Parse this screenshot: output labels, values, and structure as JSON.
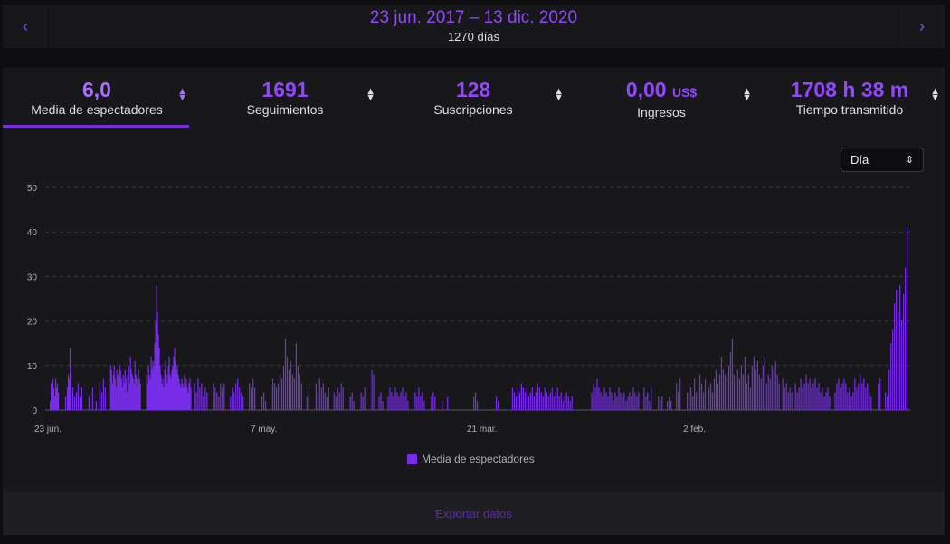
{
  "date_range": {
    "title": "23 jun. 2017 – 13 dic. 2020",
    "subtitle": "1270 días",
    "prev_icon": "‹",
    "next_icon": "›"
  },
  "stats": [
    {
      "value": "6,0",
      "unit": "",
      "label": "Media de espectadores",
      "active": true
    },
    {
      "value": "1691",
      "unit": "",
      "label": "Seguimientos",
      "active": false
    },
    {
      "value": "128",
      "unit": "",
      "label": "Suscripciones",
      "active": false
    },
    {
      "value": "0,00",
      "unit": "US$",
      "label": "Ingresos",
      "active": false
    },
    {
      "value": "1708 h 38 m",
      "unit": "",
      "label": "Tiempo transmitido",
      "active": false
    }
  ],
  "sort_icon": "sort-arrows-icon",
  "granularity": {
    "selected": "Día"
  },
  "legend": {
    "label": "Media de espectadores"
  },
  "export": {
    "label": "Exportar datos"
  },
  "colors": {
    "accent": "#9147ff",
    "bar": "#772ce8",
    "background": "#18181b"
  },
  "chart_data": {
    "type": "bar",
    "series": [
      {
        "name": "Media de espectadores"
      }
    ],
    "ylim": [
      0,
      50
    ],
    "yticks": [
      0,
      10,
      20,
      30,
      40,
      50
    ],
    "xticks": [
      "23 jun.",
      "7 may.",
      "21 mar.",
      "2 feb."
    ],
    "grid": true,
    "legend_position": "bottom",
    "total_days": 1270,
    "points": [
      [
        5,
        2
      ],
      [
        6,
        6
      ],
      [
        7,
        4
      ],
      [
        8,
        7
      ],
      [
        9,
        5
      ],
      [
        10,
        3
      ],
      [
        11,
        7
      ],
      [
        12,
        5
      ],
      [
        13,
        6
      ],
      [
        14,
        4
      ],
      [
        22,
        3
      ],
      [
        24,
        5
      ],
      [
        25,
        8
      ],
      [
        26,
        7
      ],
      [
        27,
        14
      ],
      [
        28,
        10
      ],
      [
        30,
        5
      ],
      [
        32,
        3
      ],
      [
        34,
        4
      ],
      [
        36,
        6
      ],
      [
        38,
        3
      ],
      [
        40,
        5
      ],
      [
        48,
        3
      ],
      [
        52,
        5
      ],
      [
        56,
        2
      ],
      [
        60,
        6
      ],
      [
        62,
        4
      ],
      [
        64,
        7
      ],
      [
        66,
        5
      ],
      [
        72,
        10
      ],
      [
        73,
        9
      ],
      [
        74,
        6
      ],
      [
        75,
        8
      ],
      [
        76,
        10
      ],
      [
        77,
        7
      ],
      [
        78,
        5
      ],
      [
        79,
        9
      ],
      [
        80,
        8
      ],
      [
        81,
        6
      ],
      [
        82,
        10
      ],
      [
        83,
        9
      ],
      [
        84,
        7
      ],
      [
        85,
        5
      ],
      [
        86,
        8
      ],
      [
        87,
        6
      ],
      [
        88,
        9
      ],
      [
        89,
        7
      ],
      [
        90,
        4
      ],
      [
        91,
        8
      ],
      [
        92,
        10
      ],
      [
        93,
        6
      ],
      [
        94,
        12
      ],
      [
        95,
        9
      ],
      [
        96,
        8
      ],
      [
        97,
        7
      ],
      [
        98,
        6
      ],
      [
        99,
        11
      ],
      [
        100,
        8
      ],
      [
        101,
        7
      ],
      [
        102,
        5
      ],
      [
        103,
        9
      ],
      [
        104,
        7
      ],
      [
        105,
        6
      ],
      [
        112,
        8
      ],
      [
        113,
        6
      ],
      [
        114,
        10
      ],
      [
        115,
        8
      ],
      [
        116,
        7
      ],
      [
        117,
        12
      ],
      [
        118,
        9
      ],
      [
        119,
        11
      ],
      [
        120,
        10
      ],
      [
        121,
        15
      ],
      [
        122,
        20
      ],
      [
        123,
        28
      ],
      [
        124,
        22
      ],
      [
        125,
        17
      ],
      [
        126,
        14
      ],
      [
        127,
        10
      ],
      [
        128,
        8
      ],
      [
        129,
        6
      ],
      [
        130,
        7
      ],
      [
        131,
        5
      ],
      [
        132,
        9
      ],
      [
        133,
        11
      ],
      [
        134,
        8
      ],
      [
        135,
        6
      ],
      [
        136,
        10
      ],
      [
        137,
        12
      ],
      [
        138,
        8
      ],
      [
        139,
        7
      ],
      [
        140,
        9
      ],
      [
        141,
        10
      ],
      [
        142,
        12
      ],
      [
        143,
        14
      ],
      [
        144,
        11
      ],
      [
        145,
        9
      ],
      [
        146,
        10
      ],
      [
        147,
        8
      ],
      [
        148,
        7
      ],
      [
        149,
        6
      ],
      [
        150,
        5
      ],
      [
        151,
        7
      ],
      [
        152,
        6
      ],
      [
        153,
        5
      ],
      [
        154,
        8
      ],
      [
        155,
        6
      ],
      [
        156,
        7
      ],
      [
        157,
        5
      ],
      [
        158,
        4
      ],
      [
        159,
        6
      ],
      [
        160,
        7
      ],
      [
        161,
        5
      ],
      [
        165,
        6
      ],
      [
        167,
        4
      ],
      [
        169,
        7
      ],
      [
        171,
        5
      ],
      [
        173,
        6
      ],
      [
        175,
        3
      ],
      [
        177,
        5
      ],
      [
        179,
        4
      ],
      [
        186,
        6
      ],
      [
        188,
        5
      ],
      [
        190,
        4
      ],
      [
        192,
        3
      ],
      [
        194,
        6
      ],
      [
        196,
        5
      ],
      [
        198,
        6
      ],
      [
        205,
        3
      ],
      [
        207,
        5
      ],
      [
        209,
        4
      ],
      [
        211,
        6
      ],
      [
        213,
        7
      ],
      [
        215,
        5
      ],
      [
        217,
        4
      ],
      [
        219,
        3
      ],
      [
        226,
        6
      ],
      [
        228,
        5
      ],
      [
        230,
        7
      ],
      [
        232,
        5
      ],
      [
        240,
        3
      ],
      [
        242,
        4
      ],
      [
        244,
        2
      ],
      [
        250,
        5
      ],
      [
        252,
        7
      ],
      [
        254,
        6
      ],
      [
        256,
        5
      ],
      [
        258,
        6
      ],
      [
        260,
        8
      ],
      [
        262,
        7
      ],
      [
        264,
        10
      ],
      [
        266,
        16
      ],
      [
        268,
        12
      ],
      [
        270,
        9
      ],
      [
        272,
        11
      ],
      [
        274,
        8
      ],
      [
        276,
        7
      ],
      [
        278,
        15
      ],
      [
        280,
        10
      ],
      [
        282,
        8
      ],
      [
        284,
        6
      ],
      [
        290,
        3
      ],
      [
        292,
        5
      ],
      [
        300,
        6
      ],
      [
        302,
        4
      ],
      [
        304,
        7
      ],
      [
        306,
        5
      ],
      [
        308,
        6
      ],
      [
        310,
        4
      ],
      [
        312,
        3
      ],
      [
        314,
        5
      ],
      [
        320,
        4
      ],
      [
        322,
        3
      ],
      [
        324,
        5
      ],
      [
        326,
        4
      ],
      [
        328,
        6
      ],
      [
        330,
        5
      ],
      [
        338,
        3
      ],
      [
        340,
        4
      ],
      [
        342,
        2
      ],
      [
        350,
        4
      ],
      [
        352,
        3
      ],
      [
        354,
        5
      ],
      [
        362,
        9
      ],
      [
        364,
        8
      ],
      [
        370,
        3
      ],
      [
        372,
        4
      ],
      [
        374,
        2
      ],
      [
        380,
        3
      ],
      [
        382,
        5
      ],
      [
        384,
        4
      ],
      [
        386,
        3
      ],
      [
        388,
        5
      ],
      [
        390,
        4
      ],
      [
        392,
        3
      ],
      [
        394,
        4
      ],
      [
        396,
        5
      ],
      [
        398,
        3
      ],
      [
        400,
        4
      ],
      [
        402,
        2
      ],
      [
        410,
        4
      ],
      [
        412,
        3
      ],
      [
        414,
        5
      ],
      [
        416,
        3
      ],
      [
        418,
        4
      ],
      [
        420,
        2
      ],
      [
        428,
        3
      ],
      [
        430,
        4
      ],
      [
        432,
        3
      ],
      [
        440,
        2
      ],
      [
        446,
        3
      ],
      [
        475,
        3
      ],
      [
        477,
        4
      ],
      [
        479,
        2
      ],
      [
        500,
        3
      ],
      [
        502,
        2
      ],
      [
        518,
        5
      ],
      [
        520,
        4
      ],
      [
        522,
        3
      ],
      [
        524,
        5
      ],
      [
        526,
        4
      ],
      [
        528,
        6
      ],
      [
        530,
        5
      ],
      [
        532,
        4
      ],
      [
        534,
        5
      ],
      [
        536,
        3
      ],
      [
        538,
        4
      ],
      [
        540,
        5
      ],
      [
        542,
        3
      ],
      [
        544,
        4
      ],
      [
        546,
        6
      ],
      [
        548,
        5
      ],
      [
        550,
        4
      ],
      [
        552,
        3
      ],
      [
        554,
        5
      ],
      [
        556,
        4
      ],
      [
        558,
        3
      ],
      [
        560,
        4
      ],
      [
        562,
        5
      ],
      [
        564,
        3
      ],
      [
        566,
        4
      ],
      [
        568,
        5
      ],
      [
        570,
        3
      ],
      [
        572,
        4
      ],
      [
        574,
        2
      ],
      [
        576,
        3
      ],
      [
        578,
        4
      ],
      [
        580,
        3
      ],
      [
        582,
        2
      ],
      [
        584,
        3
      ],
      [
        606,
        4
      ],
      [
        608,
        6
      ],
      [
        610,
        5
      ],
      [
        612,
        7
      ],
      [
        614,
        5
      ],
      [
        616,
        4
      ],
      [
        618,
        3
      ],
      [
        620,
        5
      ],
      [
        622,
        4
      ],
      [
        624,
        3
      ],
      [
        626,
        5
      ],
      [
        628,
        4
      ],
      [
        630,
        2
      ],
      [
        632,
        4
      ],
      [
        634,
        3
      ],
      [
        636,
        5
      ],
      [
        638,
        4
      ],
      [
        640,
        3
      ],
      [
        642,
        4
      ],
      [
        644,
        2
      ],
      [
        646,
        3
      ],
      [
        648,
        4
      ],
      [
        650,
        3
      ],
      [
        652,
        5
      ],
      [
        654,
        4
      ],
      [
        656,
        3
      ],
      [
        658,
        4
      ],
      [
        664,
        5
      ],
      [
        666,
        3
      ],
      [
        668,
        4
      ],
      [
        670,
        2
      ],
      [
        672,
        5
      ],
      [
        680,
        3
      ],
      [
        682,
        2
      ],
      [
        684,
        3
      ],
      [
        690,
        2
      ],
      [
        692,
        3
      ],
      [
        694,
        2
      ],
      [
        700,
        6
      ],
      [
        702,
        4
      ],
      [
        704,
        7
      ],
      [
        712,
        4
      ],
      [
        714,
        6
      ],
      [
        716,
        5
      ],
      [
        718,
        3
      ],
      [
        720,
        7
      ],
      [
        722,
        4
      ],
      [
        724,
        5
      ],
      [
        726,
        8
      ],
      [
        728,
        6
      ],
      [
        730,
        4
      ],
      [
        732,
        7
      ],
      [
        736,
        5
      ],
      [
        738,
        6
      ],
      [
        740,
        4
      ],
      [
        742,
        7
      ],
      [
        744,
        9
      ],
      [
        746,
        6
      ],
      [
        748,
        8
      ],
      [
        750,
        12
      ],
      [
        752,
        9
      ],
      [
        754,
        8
      ],
      [
        756,
        7
      ],
      [
        758,
        10
      ],
      [
        760,
        13
      ],
      [
        762,
        16
      ],
      [
        764,
        8
      ],
      [
        766,
        6
      ],
      [
        768,
        9
      ],
      [
        770,
        7
      ],
      [
        772,
        10
      ],
      [
        774,
        8
      ],
      [
        776,
        12
      ],
      [
        778,
        6
      ],
      [
        780,
        8
      ],
      [
        782,
        5
      ],
      [
        784,
        10
      ],
      [
        786,
        12
      ],
      [
        788,
        9
      ],
      [
        790,
        11
      ],
      [
        792,
        8
      ],
      [
        794,
        7
      ],
      [
        796,
        10
      ],
      [
        798,
        12
      ],
      [
        800,
        6
      ],
      [
        802,
        8
      ],
      [
        804,
        7
      ],
      [
        806,
        10
      ],
      [
        808,
        9
      ],
      [
        810,
        11
      ],
      [
        812,
        8
      ],
      [
        814,
        6
      ],
      [
        818,
        7
      ],
      [
        820,
        5
      ],
      [
        822,
        6
      ],
      [
        824,
        4
      ],
      [
        826,
        5
      ],
      [
        828,
        4
      ],
      [
        832,
        6
      ],
      [
        834,
        4
      ],
      [
        836,
        5
      ],
      [
        838,
        7
      ],
      [
        840,
        5
      ],
      [
        842,
        6
      ],
      [
        844,
        8
      ],
      [
        846,
        6
      ],
      [
        848,
        7
      ],
      [
        850,
        5
      ],
      [
        852,
        6
      ],
      [
        854,
        7
      ],
      [
        856,
        5
      ],
      [
        858,
        6
      ],
      [
        860,
        4
      ],
      [
        862,
        5
      ],
      [
        864,
        3
      ],
      [
        866,
        4
      ],
      [
        868,
        5
      ],
      [
        870,
        3
      ],
      [
        876,
        4
      ],
      [
        878,
        6
      ],
      [
        880,
        7
      ],
      [
        882,
        5
      ],
      [
        884,
        6
      ],
      [
        886,
        7
      ],
      [
        888,
        6
      ],
      [
        890,
        4
      ],
      [
        892,
        5
      ],
      [
        894,
        3
      ],
      [
        896,
        4
      ],
      [
        898,
        7
      ],
      [
        900,
        5
      ],
      [
        902,
        6
      ],
      [
        904,
        8
      ],
      [
        906,
        6
      ],
      [
        908,
        7
      ],
      [
        910,
        5
      ],
      [
        912,
        6
      ],
      [
        914,
        4
      ],
      [
        916,
        3
      ],
      [
        924,
        6
      ],
      [
        926,
        7
      ],
      [
        932,
        4
      ],
      [
        934,
        3
      ],
      [
        936,
        9
      ],
      [
        938,
        15
      ],
      [
        940,
        18
      ],
      [
        942,
        24
      ],
      [
        944,
        27
      ],
      [
        946,
        22
      ],
      [
        948,
        28
      ],
      [
        950,
        20
      ],
      [
        952,
        26
      ],
      [
        954,
        32
      ],
      [
        956,
        41
      ]
    ]
  }
}
